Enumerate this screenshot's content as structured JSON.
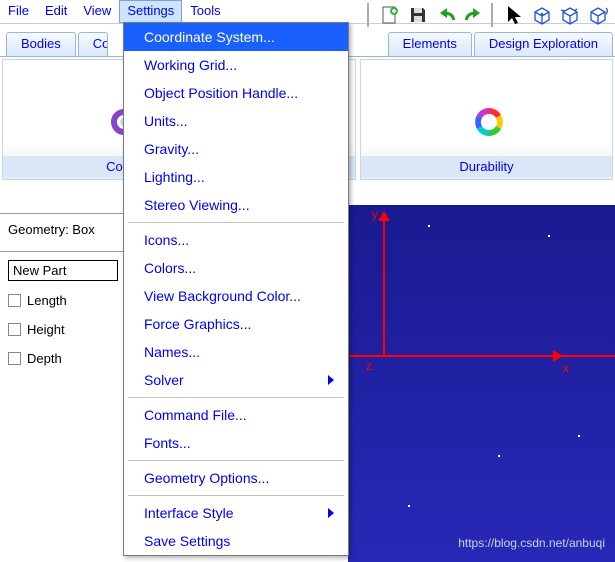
{
  "menubar": {
    "items": [
      "File",
      "Edit",
      "View",
      "Settings",
      "Tools"
    ],
    "open_index": 3
  },
  "toolbar": {
    "icons": [
      "new-doc-icon",
      "save-icon",
      "undo-icon",
      "redo-icon",
      "cursor-icon",
      "cube1-icon",
      "cube2-icon",
      "cube3-icon"
    ]
  },
  "ribbon": {
    "tabs": [
      "Bodies",
      "Co",
      "Elements",
      "Design Exploration"
    ],
    "groups": [
      {
        "label": "Contr",
        "icon": "gear-purple-icon"
      },
      {
        "label": "n",
        "icon": ""
      },
      {
        "label": "Durability",
        "icon": "gear-rainbow-icon"
      }
    ]
  },
  "dropdown": {
    "items": [
      {
        "label": "Coordinate System...",
        "highlighted": true
      },
      {
        "label": "Working Grid..."
      },
      {
        "label": "Object Position Handle..."
      },
      {
        "label": "Units..."
      },
      {
        "label": "Gravity..."
      },
      {
        "label": "Lighting..."
      },
      {
        "label": "Stereo Viewing..."
      },
      {
        "sep": true
      },
      {
        "label": "Icons..."
      },
      {
        "label": "Colors..."
      },
      {
        "label": "View Background Color..."
      },
      {
        "label": "Force Graphics..."
      },
      {
        "label": "Names..."
      },
      {
        "label": "Solver",
        "submenu": true
      },
      {
        "sep": true
      },
      {
        "label": "Command File..."
      },
      {
        "label": "Fonts..."
      },
      {
        "sep": true
      },
      {
        "label": "Geometry Options..."
      },
      {
        "sep": true
      },
      {
        "label": "Interface Style",
        "submenu": true
      },
      {
        "label": "Save Settings"
      }
    ]
  },
  "props": {
    "title": "Geometry: Box",
    "input_value": "New Part",
    "rows": [
      {
        "label": "Length"
      },
      {
        "label": "Height"
      },
      {
        "label": "Depth"
      }
    ]
  },
  "viewport": {
    "bg_top": "#1a1a90",
    "bg_bottom": "#2828b8",
    "axis_color": "#ff0000",
    "labels": {
      "y": "y",
      "x": "x",
      "z": "z"
    },
    "watermark": "https://blog.csdn.net/anbuqi"
  }
}
